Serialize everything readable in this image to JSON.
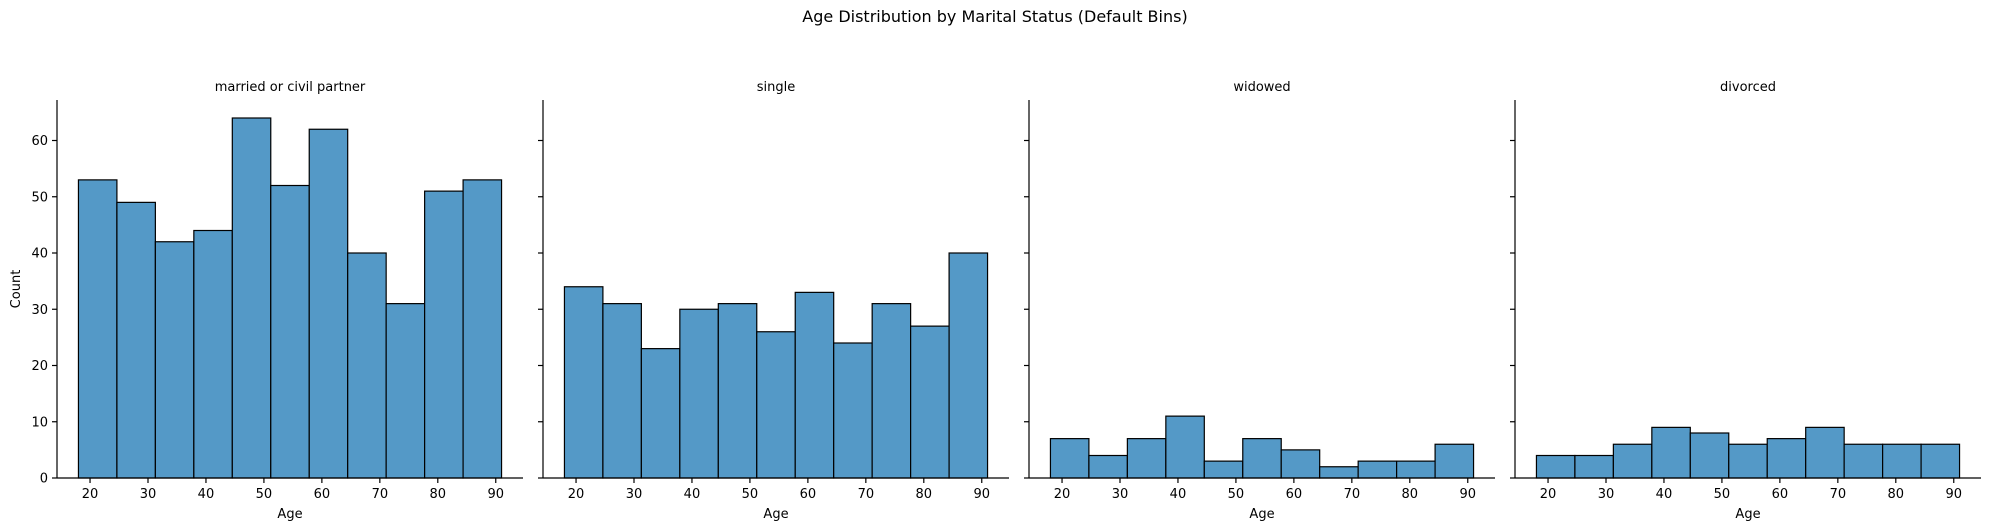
{
  "chart_data": {
    "type": "bar",
    "title": "Age Distribution by Marital Status (Default Bins)",
    "xlabel": "Age",
    "ylabel": "Count",
    "xlim": [
      14.3,
      94.7
    ],
    "ylim": [
      0,
      67.2
    ],
    "xticks": [
      20,
      30,
      40,
      50,
      60,
      70,
      80,
      90
    ],
    "yticks": [
      0,
      10,
      20,
      30,
      40,
      50,
      60
    ],
    "color": "#5499c7",
    "facets": [
      {
        "title": "married or civil partner",
        "bin_start": 18,
        "bin_end": 91,
        "counts": [
          53,
          49,
          42,
          44,
          64,
          52,
          62,
          40,
          31,
          51,
          53
        ]
      },
      {
        "title": "single",
        "bin_start": 18,
        "bin_end": 91,
        "counts": [
          34,
          31,
          23,
          30,
          31,
          26,
          33,
          24,
          31,
          27,
          40
        ]
      },
      {
        "title": "widowed",
        "bin_start": 18,
        "bin_end": 91,
        "counts": [
          7,
          4,
          7,
          11,
          3,
          7,
          5,
          2,
          3,
          3,
          6
        ]
      },
      {
        "title": "divorced",
        "bin_start": 18,
        "bin_end": 91,
        "counts": [
          4,
          4,
          6,
          9,
          8,
          6,
          7,
          9,
          6,
          6,
          6
        ]
      }
    ]
  }
}
